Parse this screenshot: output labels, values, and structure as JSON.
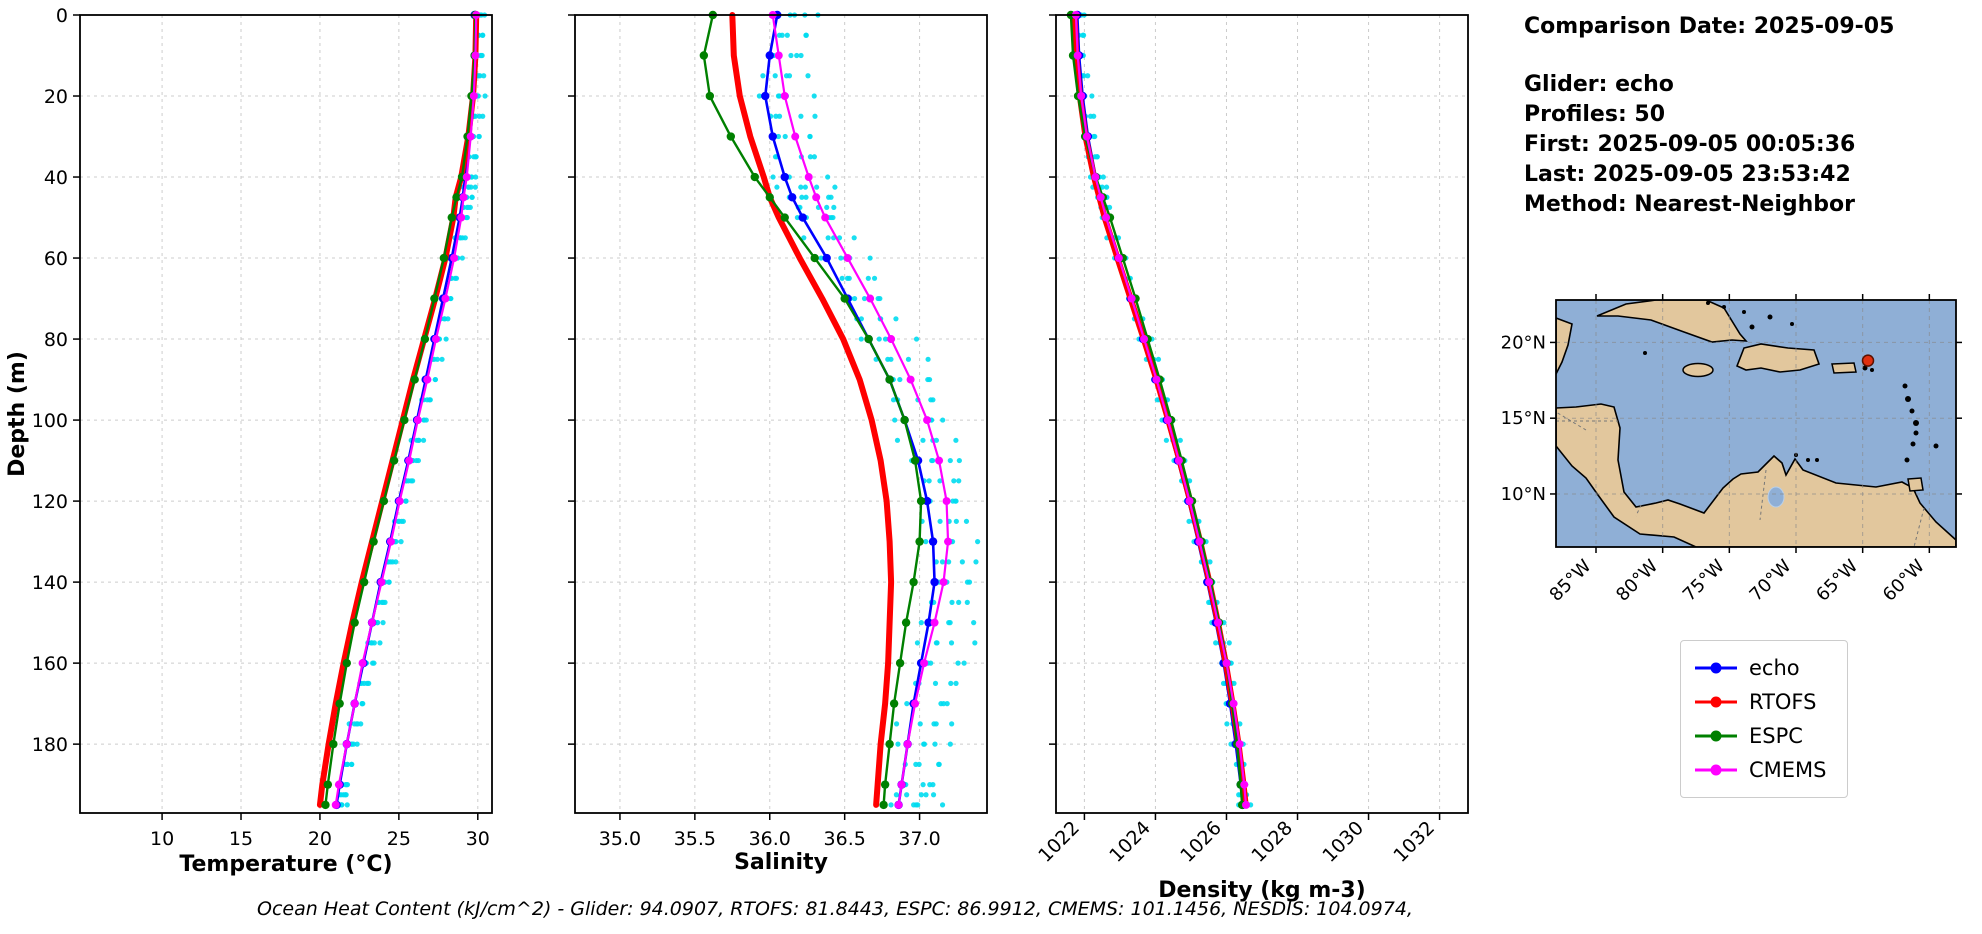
{
  "info": {
    "comparison_date": "Comparison Date: 2025-09-05",
    "glider": "Glider: echo",
    "profiles": "Profiles: 50",
    "first": "First: 2025-09-05 00:05:36",
    "last": "Last: 2025-09-05 23:53:42",
    "method": "Method: Nearest-Neighbor"
  },
  "footer": "Ocean Heat Content (kJ/cm^2) - Glider: 94.0907,  RTOFS: 81.8443,  ESPC: 86.9912,  CMEMS: 101.1456,  NESDIS: 104.0974,",
  "legend": {
    "entries": [
      {
        "label": "echo",
        "color": "#0000ff"
      },
      {
        "label": "RTOFS",
        "color": "#ff0000"
      },
      {
        "label": "ESPC",
        "color": "#008000"
      },
      {
        "label": "CMEMS",
        "color": "#ff00ff"
      }
    ]
  },
  "map": {
    "extent": {
      "lon_min": -88,
      "lon_max": -58,
      "lat_min": 6.5,
      "lat_max": 22.8
    },
    "lat_ticks": [
      {
        "label": "20°N",
        "lat": 20
      },
      {
        "label": "15°N",
        "lat": 15
      },
      {
        "label": "10°N",
        "lat": 10
      }
    ],
    "lon_ticks": [
      {
        "label": "85°W",
        "lon": -85
      },
      {
        "label": "80°W",
        "lon": -80
      },
      {
        "label": "75°W",
        "lon": -75
      },
      {
        "label": "70°W",
        "lon": -70
      },
      {
        "label": "65°W",
        "lon": -65
      },
      {
        "label": "60°W",
        "lon": -60
      }
    ],
    "marker": {
      "lon": -64.6,
      "lat": 18.8,
      "color": "#e03010"
    },
    "ocean_color": "#8fafd6",
    "land_color": "#e2c79d"
  },
  "chart_data": {
    "type": "line",
    "ylabel": "Depth (m)",
    "ylim": [
      0,
      197
    ],
    "yticks": [
      0,
      20,
      40,
      60,
      80,
      100,
      120,
      140,
      160,
      180
    ],
    "depths": [
      0,
      10,
      20,
      30,
      40,
      45,
      50,
      60,
      70,
      80,
      90,
      100,
      110,
      120,
      130,
      140,
      150,
      160,
      170,
      180,
      190,
      195
    ],
    "draw_order": [
      "echo",
      "RTOFS",
      "ESPC",
      "CMEMS"
    ],
    "scatter_color": "#00dcf0",
    "series_styles": {
      "echo": {
        "color": "#0000ff",
        "line_width": 2.6,
        "marker_radius": 4.2,
        "marker_every": 1
      },
      "RTOFS": {
        "color": "#ff0000",
        "line_width": 6.0,
        "marker_radius": 0,
        "marker_every": 1
      },
      "ESPC": {
        "color": "#008000",
        "line_width": 2.4,
        "marker_radius": 4.2,
        "marker_every": 1
      },
      "CMEMS": {
        "color": "#ff00ff",
        "line_width": 2.2,
        "marker_radius": 4.0,
        "marker_every": 1
      }
    },
    "panels": [
      {
        "name": "temperature",
        "xlabel": "Temperature (°C)",
        "xlabel_offset": 58,
        "xlim": [
          4.8,
          30.9
        ],
        "xticks": [
          10,
          15,
          20,
          25,
          30
        ],
        "xtick_labels": [
          "10",
          "15",
          "20",
          "25",
          "30"
        ],
        "xtick_rotation": 0,
        "series": {
          "echo": [
            29.8,
            29.8,
            29.7,
            29.5,
            29.2,
            29.05,
            28.85,
            28.35,
            27.8,
            27.25,
            26.7,
            26.15,
            25.6,
            25.0,
            24.45,
            23.85,
            23.3,
            22.75,
            22.2,
            21.7,
            21.25,
            21.05
          ],
          "RTOFS": [
            29.9,
            29.85,
            29.7,
            29.4,
            28.95,
            28.6,
            28.45,
            27.95,
            27.3,
            26.6,
            25.9,
            25.25,
            24.6,
            23.95,
            23.3,
            22.65,
            22.05,
            21.5,
            21.0,
            20.55,
            20.15,
            20.0
          ],
          "ESPC": [
            29.85,
            29.8,
            29.6,
            29.35,
            29.0,
            28.65,
            28.35,
            27.85,
            27.25,
            26.65,
            26.0,
            25.35,
            24.7,
            24.05,
            23.4,
            22.8,
            22.2,
            21.7,
            21.25,
            20.85,
            20.5,
            20.35
          ],
          "CMEMS": [
            29.9,
            29.85,
            29.75,
            29.55,
            29.3,
            29.1,
            28.95,
            28.5,
            27.95,
            27.35,
            26.8,
            26.2,
            25.65,
            25.05,
            24.5,
            23.9,
            23.3,
            22.7,
            22.2,
            21.7,
            21.2,
            21.0
          ]
        },
        "profiles_scatter": {
          "base": "echo",
          "offsets": [
            0.08,
            0.2,
            0.32,
            0.45,
            0.6
          ],
          "wiggle": 0.12
        }
      },
      {
        "name": "salinity",
        "xlabel": "Salinity",
        "xlabel_offset": 56,
        "xlim": [
          34.7,
          37.45
        ],
        "xticks": [
          35.0,
          35.5,
          36.0,
          36.5,
          37.0
        ],
        "xtick_labels": [
          "35.0",
          "35.5",
          "36.0",
          "36.5",
          "37.0"
        ],
        "xtick_rotation": 0,
        "series": {
          "echo": [
            36.05,
            36.0,
            35.97,
            36.02,
            36.1,
            36.15,
            36.22,
            36.38,
            36.52,
            36.66,
            36.8,
            36.9,
            36.99,
            37.05,
            37.09,
            37.1,
            37.06,
            37.01,
            36.96,
            36.92,
            36.88,
            36.86
          ],
          "RTOFS": [
            35.75,
            35.76,
            35.8,
            35.87,
            35.96,
            36.0,
            36.06,
            36.2,
            36.35,
            36.49,
            36.6,
            36.68,
            36.74,
            36.78,
            36.8,
            36.81,
            36.8,
            36.79,
            36.77,
            36.74,
            36.72,
            36.71
          ],
          "ESPC": [
            35.62,
            35.56,
            35.6,
            35.74,
            35.9,
            36.0,
            36.1,
            36.3,
            36.5,
            36.66,
            36.8,
            36.9,
            36.97,
            37.01,
            37.0,
            36.96,
            36.91,
            36.87,
            36.83,
            36.8,
            36.77,
            36.76
          ],
          "CMEMS": [
            36.02,
            36.06,
            36.1,
            36.17,
            36.26,
            36.31,
            36.37,
            36.52,
            36.67,
            36.81,
            36.94,
            37.05,
            37.13,
            37.18,
            37.19,
            37.16,
            37.1,
            37.03,
            36.97,
            36.92,
            36.88,
            36.86
          ]
        },
        "profiles_scatter": {
          "base": "echo",
          "offsets": [
            -0.02,
            0.05,
            0.12,
            0.19,
            0.26
          ],
          "wiggle": 0.05
        }
      },
      {
        "name": "density",
        "xlabel": "Density (kg m-3)",
        "xlabel_offset": 84,
        "xlim": [
          1021.2,
          1032.8
        ],
        "xticks": [
          1022,
          1024,
          1026,
          1028,
          1030,
          1032
        ],
        "xtick_labels": [
          "1022",
          "1024",
          "1026",
          "1028",
          "1030",
          "1032"
        ],
        "xtick_rotation": 45,
        "series": {
          "echo": [
            1021.8,
            1021.85,
            1021.95,
            1022.1,
            1022.32,
            1022.45,
            1022.6,
            1022.95,
            1023.3,
            1023.65,
            1024.0,
            1024.32,
            1024.63,
            1024.93,
            1025.2,
            1025.46,
            1025.7,
            1025.92,
            1026.1,
            1026.26,
            1026.4,
            1026.46
          ],
          "RTOFS": [
            1021.72,
            1021.77,
            1021.87,
            1022.03,
            1022.27,
            1022.42,
            1022.57,
            1022.93,
            1023.3,
            1023.67,
            1024.03,
            1024.36,
            1024.68,
            1024.98,
            1025.26,
            1025.52,
            1025.76,
            1025.98,
            1026.17,
            1026.34,
            1026.48,
            1026.54
          ],
          "ESPC": [
            1021.62,
            1021.68,
            1021.82,
            1022.02,
            1022.32,
            1022.52,
            1022.72,
            1023.08,
            1023.44,
            1023.78,
            1024.12,
            1024.44,
            1024.74,
            1025.03,
            1025.3,
            1025.55,
            1025.79,
            1026.0,
            1026.16,
            1026.3,
            1026.4,
            1026.44
          ],
          "CMEMS": [
            1021.76,
            1021.81,
            1021.91,
            1022.07,
            1022.31,
            1022.46,
            1022.61,
            1022.97,
            1023.33,
            1023.68,
            1024.03,
            1024.35,
            1024.66,
            1024.96,
            1025.24,
            1025.51,
            1025.76,
            1026.0,
            1026.2,
            1026.37,
            1026.5,
            1026.55
          ]
        },
        "profiles_scatter": {
          "base": "echo",
          "offsets": [
            -0.08,
            -0.02,
            0.05,
            0.12,
            0.18
          ],
          "wiggle": 0.06
        }
      }
    ]
  }
}
